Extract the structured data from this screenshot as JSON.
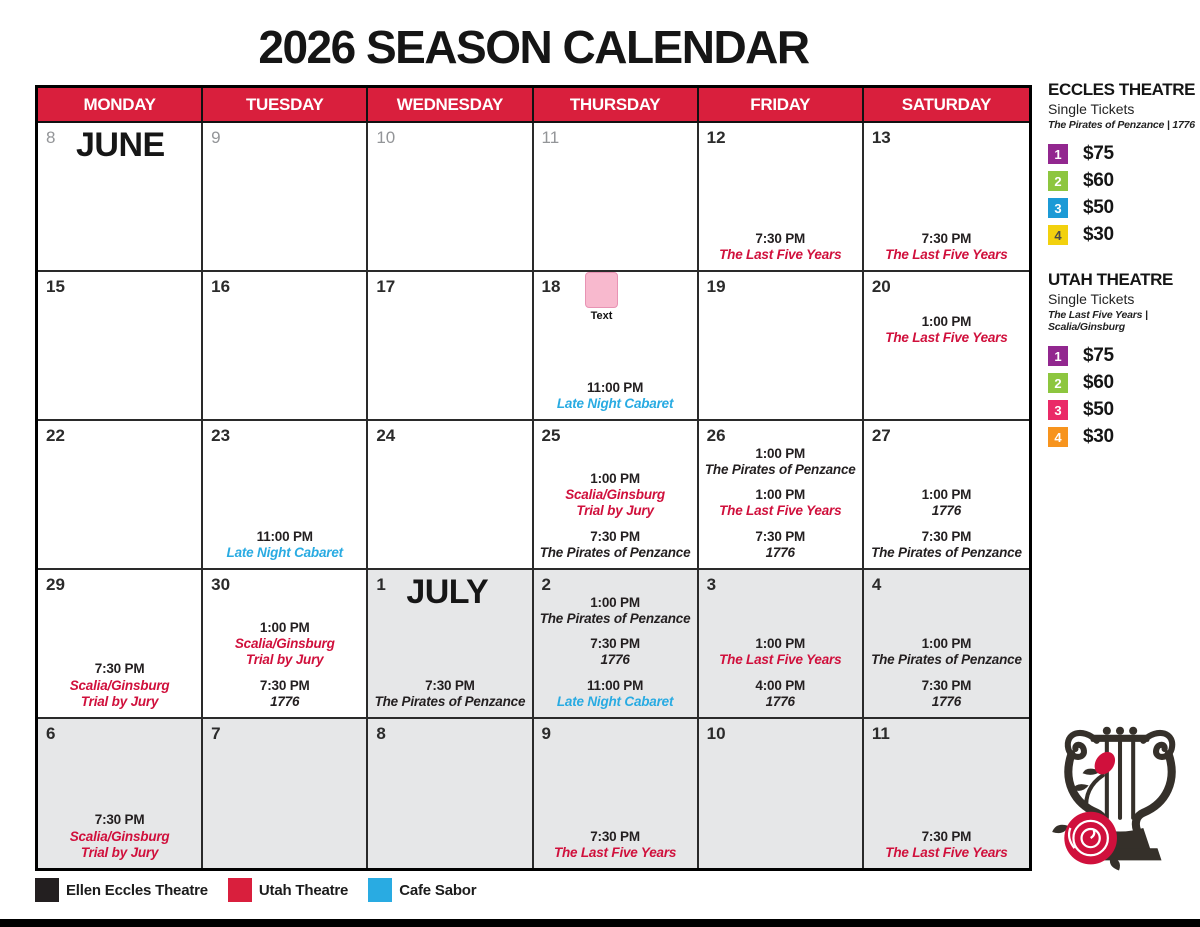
{
  "title": "2026 SEASON CALENDAR",
  "colors": {
    "header_red": "#d91f3d",
    "venue_eccles": "#231f20",
    "venue_utah": "#d0103c",
    "venue_cafe": "#29abe2",
    "july_cell_gray": "#e6e7e8",
    "muted_date_gray": "#939598",
    "annotation_pink": "#f8b9ce"
  },
  "calendar": {
    "day_headers": [
      "MONDAY",
      "TUESDAY",
      "WEDNESDAY",
      "THURSDAY",
      "FRIDAY",
      "SATURDAY"
    ],
    "weeks": [
      [
        {
          "date": "8",
          "muted": true,
          "month_label": "JUNE",
          "events": []
        },
        {
          "date": "9",
          "muted": true,
          "events": []
        },
        {
          "date": "10",
          "muted": true,
          "events": []
        },
        {
          "date": "11",
          "muted": true,
          "events": []
        },
        {
          "date": "12",
          "events": [
            {
              "time": "7:30 PM",
              "title_lines": [
                "The Last Five Years"
              ],
              "venue": "utah"
            }
          ]
        },
        {
          "date": "13",
          "events": [
            {
              "time": "7:30 PM",
              "title_lines": [
                "The Last Five Years"
              ],
              "venue": "utah"
            }
          ]
        }
      ],
      [
        {
          "date": "15",
          "events": []
        },
        {
          "date": "16",
          "events": []
        },
        {
          "date": "17",
          "events": []
        },
        {
          "date": "18",
          "annotation": {
            "label": "Text"
          },
          "events": [
            {
              "time": "11:00 PM",
              "title_lines": [
                "Late Night Cabaret"
              ],
              "venue": "cafe"
            }
          ]
        },
        {
          "date": "19",
          "events": []
        },
        {
          "date": "20",
          "align": "top",
          "events": [
            {
              "time": "1:00 PM",
              "title_lines": [
                "The Last Five Years"
              ],
              "venue": "utah"
            }
          ]
        }
      ],
      [
        {
          "date": "22",
          "events": []
        },
        {
          "date": "23",
          "events": [
            {
              "time": "11:00 PM",
              "title_lines": [
                "Late Night Cabaret"
              ],
              "venue": "cafe"
            }
          ]
        },
        {
          "date": "24",
          "events": []
        },
        {
          "date": "25",
          "events": [
            {
              "time": "1:00 PM",
              "title_lines": [
                "Scalia/Ginsburg",
                "Trial by Jury"
              ],
              "venue": "utah"
            },
            {
              "time": "7:30 PM",
              "title_lines": [
                "The Pirates of Penzance"
              ],
              "venue": "eccles"
            }
          ]
        },
        {
          "date": "26",
          "events": [
            {
              "time": "1:00 PM",
              "title_lines": [
                "The Pirates of Penzance"
              ],
              "venue": "eccles"
            },
            {
              "time": "1:00 PM",
              "title_lines": [
                "The Last Five Years"
              ],
              "venue": "utah"
            },
            {
              "time": "7:30 PM",
              "title_lines": [
                "1776"
              ],
              "venue": "eccles"
            }
          ]
        },
        {
          "date": "27",
          "events": [
            {
              "time": "1:00 PM",
              "title_lines": [
                "1776"
              ],
              "venue": "eccles"
            },
            {
              "time": "7:30 PM",
              "title_lines": [
                "The Pirates of Penzance"
              ],
              "venue": "eccles"
            }
          ]
        }
      ],
      [
        {
          "date": "29",
          "events": [
            {
              "time": "7:30 PM",
              "title_lines": [
                "Scalia/Ginsburg",
                "Trial by Jury"
              ],
              "venue": "utah"
            }
          ]
        },
        {
          "date": "30",
          "events": [
            {
              "time": "1:00 PM",
              "title_lines": [
                "Scalia/Ginsburg",
                "Trial by Jury"
              ],
              "venue": "utah"
            },
            {
              "time": "7:30 PM",
              "title_lines": [
                "1776"
              ],
              "venue": "eccles"
            }
          ]
        },
        {
          "date": "1",
          "july": true,
          "month_label": "JULY",
          "events": [
            {
              "time": "7:30 PM",
              "title_lines": [
                "The Pirates of Penzance"
              ],
              "venue": "eccles"
            }
          ]
        },
        {
          "date": "2",
          "july": true,
          "events": [
            {
              "time": "1:00 PM",
              "title_lines": [
                "The Pirates of Penzance"
              ],
              "venue": "eccles"
            },
            {
              "time": "7:30 PM",
              "title_lines": [
                "1776"
              ],
              "venue": "eccles"
            },
            {
              "time": "11:00 PM",
              "title_lines": [
                "Late Night Cabaret"
              ],
              "venue": "cafe"
            }
          ]
        },
        {
          "date": "3",
          "july": true,
          "events": [
            {
              "time": "1:00 PM",
              "title_lines": [
                "The Last Five Years"
              ],
              "venue": "utah"
            },
            {
              "time": "4:00 PM",
              "title_lines": [
                "1776"
              ],
              "venue": "eccles"
            }
          ]
        },
        {
          "date": "4",
          "july": true,
          "events": [
            {
              "time": "1:00 PM",
              "title_lines": [
                "The Pirates of Penzance"
              ],
              "venue": "eccles"
            },
            {
              "time": "7:30 PM",
              "title_lines": [
                "1776"
              ],
              "venue": "eccles"
            }
          ]
        }
      ],
      [
        {
          "date": "6",
          "july": true,
          "events": [
            {
              "time": "7:30 PM",
              "title_lines": [
                "Scalia/Ginsburg",
                "Trial by Jury"
              ],
              "venue": "utah"
            }
          ]
        },
        {
          "date": "7",
          "july": true,
          "events": []
        },
        {
          "date": "8",
          "july": true,
          "events": []
        },
        {
          "date": "9",
          "july": true,
          "events": [
            {
              "time": "7:30 PM",
              "title_lines": [
                "The Last Five Years"
              ],
              "venue": "utah"
            }
          ]
        },
        {
          "date": "10",
          "july": true,
          "events": []
        },
        {
          "date": "11",
          "july": true,
          "events": [
            {
              "time": "7:30 PM",
              "title_lines": [
                "The Last Five Years"
              ],
              "venue": "utah"
            }
          ]
        }
      ]
    ]
  },
  "sidebar": {
    "sections": [
      {
        "title": "ECCLES THEATRE",
        "subtitle": "Single Tickets",
        "shows": "The Pirates of Penzance | 1776",
        "tiers": [
          {
            "level": "1",
            "price": "$75",
            "color": "#92278f",
            "number_color": "#ffffff"
          },
          {
            "level": "2",
            "price": "$60",
            "color": "#8dc63f",
            "number_color": "#ffffff"
          },
          {
            "level": "3",
            "price": "$50",
            "color": "#1c9ad6",
            "number_color": "#ffffff"
          },
          {
            "level": "4",
            "price": "$30",
            "color": "#f2d10e",
            "number_color": "#4a4a4a"
          }
        ]
      },
      {
        "title": "UTAH THEATRE",
        "subtitle": "Single Tickets",
        "shows": "The Last Five Years | Scalia/Ginsburg",
        "tiers": [
          {
            "level": "1",
            "price": "$75",
            "color": "#92278f",
            "number_color": "#ffffff"
          },
          {
            "level": "2",
            "price": "$60",
            "color": "#8dc63f",
            "number_color": "#ffffff"
          },
          {
            "level": "3",
            "price": "$50",
            "color": "#ea2a67",
            "number_color": "#ffffff"
          },
          {
            "level": "4",
            "price": "$30",
            "color": "#f7941e",
            "number_color": "#ffffff"
          }
        ]
      }
    ]
  },
  "legend": {
    "items": [
      {
        "label": "Ellen Eccles Theatre",
        "color": "#231f20"
      },
      {
        "label": "Utah Theatre",
        "color": "#d91f3d"
      },
      {
        "label": "Cafe Sabor",
        "color": "#29abe2"
      }
    ]
  },
  "logo": {
    "icon": "lyre-rose"
  }
}
